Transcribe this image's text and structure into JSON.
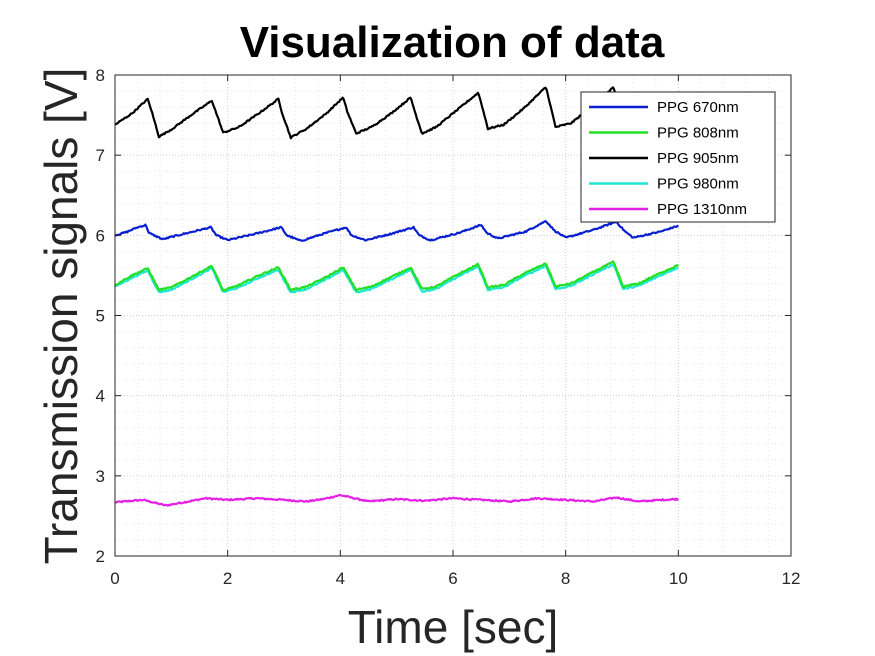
{
  "chart_data": {
    "type": "line",
    "title": "Visualization of data",
    "xlabel": "Time [sec]",
    "ylabel": "Transmission signals [V]",
    "xlim": [
      0,
      12
    ],
    "ylim": [
      2,
      8
    ],
    "xticks": [
      0,
      2,
      4,
      6,
      8,
      10,
      12
    ],
    "yticks": [
      2,
      3,
      4,
      5,
      6,
      7,
      8
    ],
    "grid": "on (major and minor, dotted)",
    "legend_position": "top-right",
    "pulse_period_sec": 1.185,
    "series": [
      {
        "name": "PPG 670nm",
        "color": "#0a1fd0",
        "x": [
          0,
          0.2,
          0.4,
          0.55,
          0.6,
          0.85,
          1.0,
          1.35,
          1.7,
          1.8,
          2.0,
          2.5,
          2.95,
          3.05,
          3.3,
          3.7,
          4.1,
          4.2,
          4.45,
          4.9,
          5.3,
          5.4,
          5.6,
          6.1,
          6.5,
          6.6,
          6.8,
          7.3,
          7.65,
          7.8,
          8.0,
          8.5,
          8.9,
          9.05,
          9.2,
          9.7,
          10.0
        ],
        "y": [
          6.0,
          6.04,
          6.1,
          6.13,
          6.03,
          5.95,
          5.98,
          6.04,
          6.1,
          6.0,
          5.94,
          6.02,
          6.1,
          6.0,
          5.93,
          6.02,
          6.1,
          6.0,
          5.94,
          6.02,
          6.1,
          6.0,
          5.94,
          6.03,
          6.13,
          6.03,
          5.96,
          6.05,
          6.18,
          6.06,
          5.97,
          6.07,
          6.17,
          6.05,
          5.97,
          6.05,
          6.12
        ]
      },
      {
        "name": "PPG 808nm",
        "color": "#22e022",
        "x": [
          0,
          0.3,
          0.58,
          0.78,
          1.0,
          1.35,
          1.72,
          1.92,
          2.2,
          2.55,
          2.9,
          3.12,
          3.4,
          3.75,
          4.05,
          4.28,
          4.55,
          4.9,
          5.25,
          5.45,
          5.7,
          6.05,
          6.45,
          6.62,
          6.9,
          7.25,
          7.65,
          7.82,
          8.1,
          8.45,
          8.85,
          9.02,
          9.3,
          9.65,
          10.0
        ],
        "y": [
          5.38,
          5.5,
          5.59,
          5.32,
          5.35,
          5.48,
          5.62,
          5.31,
          5.38,
          5.5,
          5.6,
          5.32,
          5.36,
          5.48,
          5.6,
          5.32,
          5.36,
          5.48,
          5.6,
          5.33,
          5.36,
          5.5,
          5.64,
          5.35,
          5.38,
          5.52,
          5.65,
          5.36,
          5.4,
          5.53,
          5.67,
          5.36,
          5.4,
          5.52,
          5.63
        ]
      },
      {
        "name": "PPG 905nm",
        "color": "#000000",
        "x": [
          0,
          0.3,
          0.58,
          0.65,
          0.78,
          1.0,
          1.35,
          1.72,
          1.8,
          1.92,
          2.2,
          2.55,
          2.9,
          2.97,
          3.12,
          3.4,
          3.75,
          4.05,
          4.12,
          4.28,
          4.55,
          4.9,
          5.25,
          5.32,
          5.45,
          5.7,
          6.05,
          6.45,
          6.52,
          6.62,
          6.9,
          7.25,
          7.65,
          7.72,
          7.82,
          8.1,
          8.45,
          8.85,
          8.92,
          9.02,
          9.3,
          9.65,
          10.0
        ],
        "y": [
          7.38,
          7.52,
          7.7,
          7.55,
          7.23,
          7.32,
          7.5,
          7.68,
          7.52,
          7.28,
          7.35,
          7.52,
          7.7,
          7.52,
          7.22,
          7.33,
          7.52,
          7.72,
          7.55,
          7.27,
          7.35,
          7.52,
          7.72,
          7.55,
          7.27,
          7.35,
          7.55,
          7.78,
          7.6,
          7.33,
          7.38,
          7.58,
          7.85,
          7.65,
          7.35,
          7.4,
          7.6,
          7.85,
          7.65,
          7.33,
          7.42,
          7.6,
          7.75
        ]
      },
      {
        "name": "PPG 980nm",
        "color": "#22e6d6",
        "x": [
          0,
          0.3,
          0.58,
          0.78,
          1.0,
          1.35,
          1.72,
          1.92,
          2.2,
          2.55,
          2.9,
          3.12,
          3.4,
          3.75,
          4.05,
          4.28,
          4.55,
          4.9,
          5.25,
          5.45,
          5.7,
          6.05,
          6.45,
          6.62,
          6.9,
          7.25,
          7.65,
          7.82,
          8.1,
          8.45,
          8.85,
          9.02,
          9.3,
          9.65,
          10.0
        ],
        "y": [
          5.36,
          5.47,
          5.56,
          5.29,
          5.32,
          5.45,
          5.59,
          5.29,
          5.35,
          5.47,
          5.57,
          5.29,
          5.33,
          5.45,
          5.57,
          5.29,
          5.33,
          5.45,
          5.57,
          5.3,
          5.33,
          5.47,
          5.61,
          5.32,
          5.35,
          5.49,
          5.62,
          5.33,
          5.37,
          5.5,
          5.64,
          5.33,
          5.37,
          5.49,
          5.6
        ]
      },
      {
        "name": "PPG 1310nm",
        "color": "#e61fe6",
        "x": [
          0,
          0.5,
          0.9,
          1.3,
          1.6,
          2.0,
          2.5,
          3.0,
          3.4,
          3.7,
          4.0,
          4.5,
          5.0,
          5.5,
          6.0,
          6.5,
          7.0,
          7.5,
          8.0,
          8.5,
          8.9,
          9.3,
          9.7,
          10.0
        ],
        "y": [
          2.67,
          2.7,
          2.63,
          2.68,
          2.72,
          2.7,
          2.72,
          2.7,
          2.68,
          2.71,
          2.76,
          2.68,
          2.71,
          2.69,
          2.72,
          2.7,
          2.68,
          2.72,
          2.7,
          2.68,
          2.73,
          2.68,
          2.7,
          2.71
        ]
      }
    ]
  }
}
